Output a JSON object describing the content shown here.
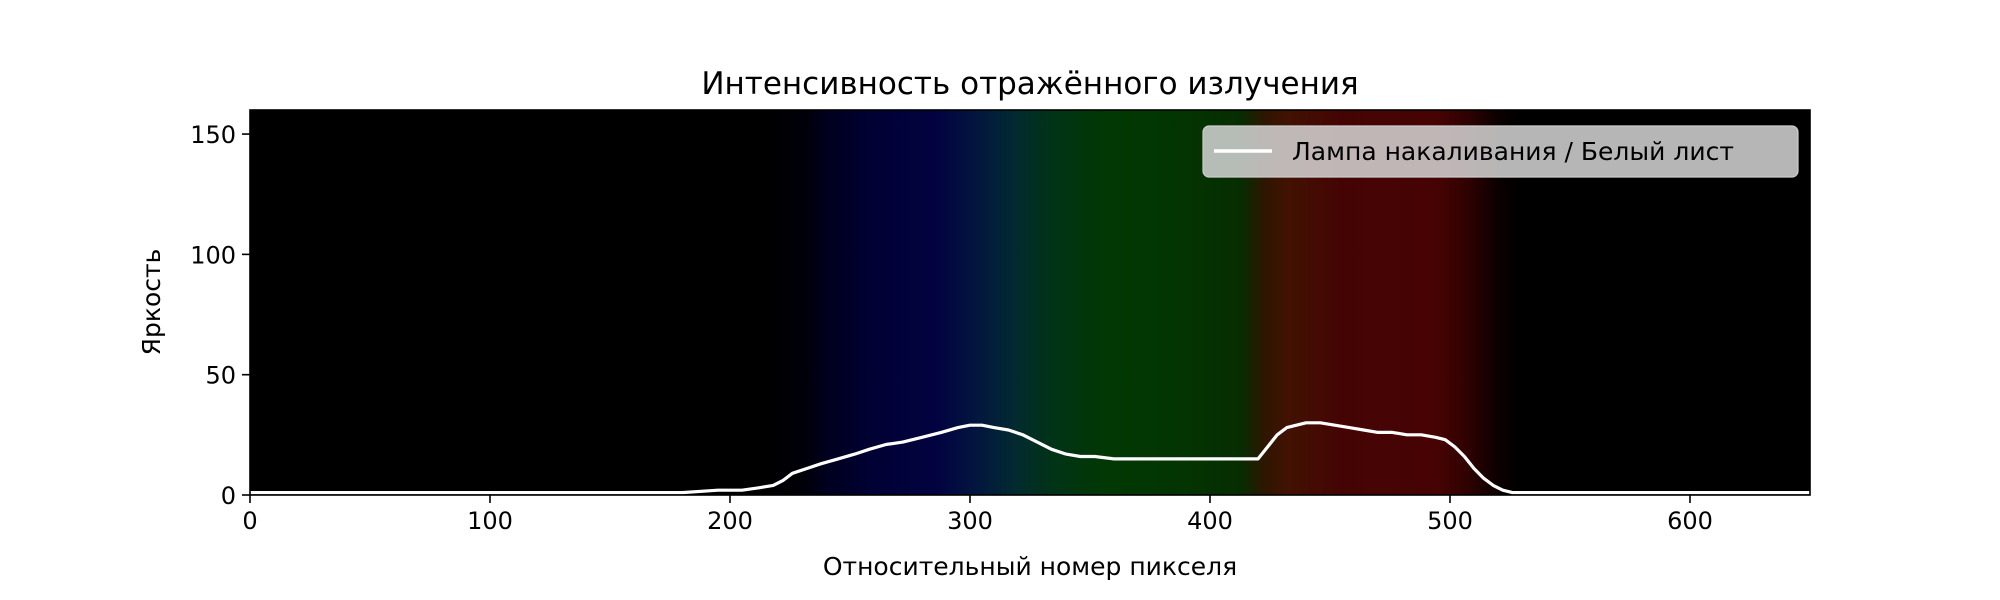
{
  "chart_data": {
    "type": "line",
    "title": "Интенсивность отражённого излучения",
    "xlabel": "Относительный номер пикселя",
    "ylabel": "Яркость",
    "xlim": [
      0,
      650
    ],
    "ylim": [
      0,
      160
    ],
    "xticks": [
      0,
      100,
      200,
      300,
      400,
      500,
      600
    ],
    "yticks": [
      0,
      50,
      100,
      150
    ],
    "grid": false,
    "legend_position": "top-right",
    "background": "spectrum image (black – blue – green – red – black)",
    "series": [
      {
        "name": "Лампа накаливания / Белый лист",
        "color": "#ffffff",
        "x": [
          0,
          100,
          180,
          195,
          205,
          212,
          218,
          222,
          226,
          232,
          238,
          245,
          252,
          258,
          265,
          272,
          280,
          288,
          295,
          300,
          305,
          310,
          316,
          322,
          328,
          334,
          340,
          346,
          352,
          360,
          370,
          380,
          390,
          400,
          410,
          420,
          424,
          428,
          432,
          436,
          440,
          446,
          452,
          458,
          464,
          470,
          476,
          482,
          488,
          494,
          498,
          502,
          506,
          510,
          514,
          518,
          522,
          526,
          530,
          560,
          650
        ],
        "y": [
          1,
          1,
          1,
          2,
          2,
          3,
          4,
          6,
          9,
          11,
          13,
          15,
          17,
          19,
          21,
          22,
          24,
          26,
          28,
          29,
          29,
          28,
          27,
          25,
          22,
          19,
          17,
          16,
          16,
          15,
          15,
          15,
          15,
          15,
          15,
          15,
          20,
          25,
          28,
          29,
          30,
          30,
          29,
          28,
          27,
          26,
          26,
          25,
          25,
          24,
          23,
          20,
          16,
          11,
          7,
          4,
          2,
          1,
          1,
          1,
          1
        ]
      }
    ]
  }
}
